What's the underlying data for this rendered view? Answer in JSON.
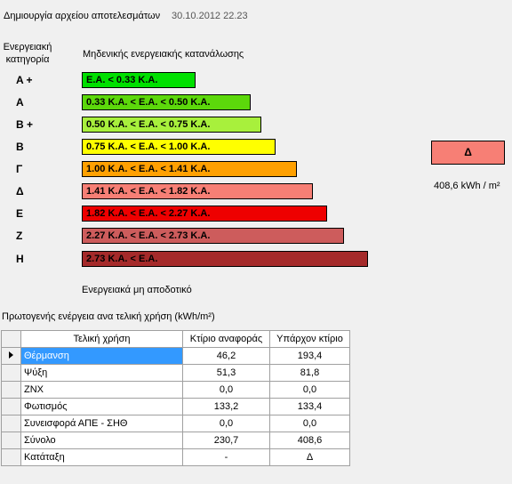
{
  "header": {
    "label": "Δημιουργία αρχείου αποτελεσμάτων",
    "date": "30.10.2012 22.23"
  },
  "scale": {
    "category_heading": [
      "Ενεργειακή",
      "κατηγορία"
    ],
    "top_label": "Μηδενικής ενεργειακής κατανάλωσης",
    "bottom_label": "Ενεργειακά μη αποδοτικό",
    "rows": [
      {
        "letter": "A +",
        "range": "E.A. < 0.33 K.A.",
        "color": "#00e000"
      },
      {
        "letter": "A",
        "range": "0.33 K.A. <  E.A. < 0.50 K.A.",
        "color": "#5cd80b"
      },
      {
        "letter": "B +",
        "range": "0.50 K.A. <  E.A. < 0.75 K.A.",
        "color": "#a8f03c"
      },
      {
        "letter": "B",
        "range": "0.75 K.A. <  E.A. < 1.00 K.A.",
        "color": "#ffff00"
      },
      {
        "letter": "Γ",
        "range": "1.00 K.A. <  E.A. < 1.41 K.A.",
        "color": "#ffa000"
      },
      {
        "letter": "Δ",
        "range": "1.41 K.A. <  E.A. < 1.82 K.A.",
        "color": "#f77f75"
      },
      {
        "letter": "E",
        "range": "1.82 K.A. <  E.A. < 2.27 K.A.",
        "color": "#ee0000"
      },
      {
        "letter": "Z",
        "range": "2.27 K.A. <  E.A. < 2.73 K.A.",
        "color": "#cd5c5c"
      },
      {
        "letter": "H",
        "range": "2.73 K.A. <  E.A.",
        "color": "#a52a2a"
      }
    ]
  },
  "rating": {
    "class": "Δ",
    "value": "408,6 kWh / m²",
    "color": "#f77f75"
  },
  "primary_energy": {
    "label": "Πρωτογενής ενέργεια ανα τελική χρήση (kWh/m²)",
    "columns": [
      "Τελική χρήση",
      "Κτίριο αναφοράς",
      "Υπάρχον κτίριο"
    ],
    "rows": [
      [
        "Θέρμανση",
        "46,2",
        "193,4"
      ],
      [
        "Ψύξη",
        "51,3",
        "81,8"
      ],
      [
        "ΖΝΧ",
        "0,0",
        "0,0"
      ],
      [
        "Φωτισμός",
        "133,2",
        "133,4"
      ],
      [
        "Συνεισφορά ΑΠΕ - ΣΗΘ",
        "0,0",
        "0,0"
      ],
      [
        "Σύνολο",
        "230,7",
        "408,6"
      ],
      [
        "Κατάταξη",
        "-",
        "Δ"
      ]
    ]
  }
}
